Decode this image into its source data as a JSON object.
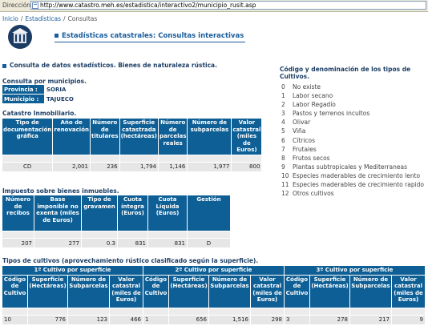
{
  "address_bar": {
    "label": "Dirección",
    "url": "http://www.catastro.meh.es/estadistica/interactivo2/municipio_rusit.asp"
  },
  "breadcrumb": {
    "links": [
      "Inicio",
      "Estadísticas"
    ],
    "separator": "/",
    "current": "Consultas"
  },
  "header": {
    "title": "Estadísticas catastrales: Consultas interactivas"
  },
  "intro": "Consulta de datos estadísticos. Bienes de naturaleza rústica.",
  "municipio_query": {
    "title": "Consulta por municipios.",
    "fields": [
      {
        "label": "Provincia :",
        "value": "SORIA"
      },
      {
        "label": "Municipio :",
        "value": "TAJUECO"
      }
    ]
  },
  "catastro": {
    "title": "Catastro Inmobiliario.",
    "columns": [
      "Tipo de documentación gráfica",
      "Año de renovación",
      "Número de titulares",
      "Superficie catastrada (hectáreas)",
      "Número de parcelas reales",
      "Número de subparcelas",
      "Valor catastral (miles de Euros)"
    ],
    "rows": [
      [
        "CD",
        "2,001",
        "236",
        "1,794",
        "1,146",
        "1,977",
        "800"
      ]
    ]
  },
  "ibi": {
    "title": "Impuesto sobre bienes inmuebles.",
    "columns": [
      "Número de recibos",
      "Base imponible no exenta (miles de Euros)",
      "Tipo de gravamen",
      "Cuota íntegra (Euros)",
      "Cuota Líquida (Euros)",
      "Gestión"
    ],
    "rows": [
      [
        "207",
        "277",
        "0.3",
        "831",
        "831",
        "D"
      ]
    ]
  },
  "cultivos": {
    "title": "Tipos de cultivos (aprovechamiento rústico clasificado según la superficie).",
    "groups": [
      "1º Cultivo por superficie",
      "2º Cultivo por superficie",
      "3º Cultivo por superficie"
    ],
    "columns": [
      "Código de Cultivo",
      "Superficie (Hectáreas)",
      "Número de Subparcelas",
      "Valor catastral (miles de Euros)"
    ],
    "rows": [
      [
        "10",
        "776",
        "123",
        "466",
        "1",
        "656",
        "1,516",
        "298",
        "3",
        "278",
        "217",
        "9"
      ]
    ]
  },
  "legend": {
    "title": "Código y denominación de los tipos de Cultivos.",
    "items": [
      {
        "code": "0",
        "label": "No existe"
      },
      {
        "code": "1",
        "label": "Labor secano"
      },
      {
        "code": "2",
        "label": "Labor Regadío"
      },
      {
        "code": "3",
        "label": "Pastos y terrenos incultos"
      },
      {
        "code": "4",
        "label": "Olivar"
      },
      {
        "code": "5",
        "label": "Viña"
      },
      {
        "code": "6",
        "label": "Cítricos"
      },
      {
        "code": "7",
        "label": "Frutales"
      },
      {
        "code": "8",
        "label": "Frutos secos"
      },
      {
        "code": "9",
        "label": "Plantas subtropicales y Mediterraneas"
      },
      {
        "code": "10",
        "label": "Especies maderables de crecimiento lento"
      },
      {
        "code": "11",
        "label": "Especies maderables de crecimiento rapido"
      },
      {
        "code": "12",
        "label": "Otros cultivos"
      }
    ]
  }
}
